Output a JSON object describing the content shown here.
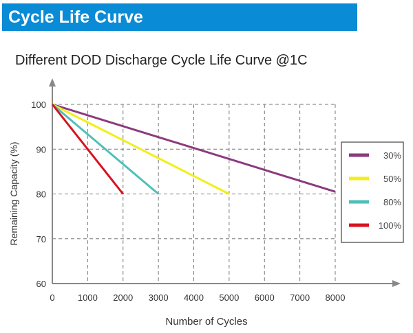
{
  "header": {
    "title": "Cycle Life Curve",
    "color": "#0a8bd6"
  },
  "chart_data": {
    "type": "line",
    "title": "Different DOD Discharge Cycle Life Curve @1C",
    "xlabel": "Number of Cycles",
    "ylabel": "Remaining Capacity (%)",
    "xlim": [
      0,
      8000
    ],
    "ylim": [
      60,
      100
    ],
    "xticks": [
      0,
      1000,
      2000,
      3000,
      4000,
      5000,
      6000,
      7000,
      8000
    ],
    "yticks": [
      60,
      70,
      80,
      90,
      100
    ],
    "grid": true,
    "legend_position": "right",
    "series": [
      {
        "name": "30%",
        "color": "#8b3a7e",
        "x": [
          0,
          8000
        ],
        "y": [
          100,
          80.5
        ]
      },
      {
        "name": "50%",
        "color": "#f2ee1a",
        "x": [
          0,
          5000
        ],
        "y": [
          100,
          80
        ]
      },
      {
        "name": "80%",
        "color": "#4fbfb8",
        "x": [
          0,
          3000
        ],
        "y": [
          100,
          80
        ]
      },
      {
        "name": "100%",
        "color": "#d7131f",
        "x": [
          0,
          2000
        ],
        "y": [
          100,
          80
        ]
      }
    ]
  }
}
